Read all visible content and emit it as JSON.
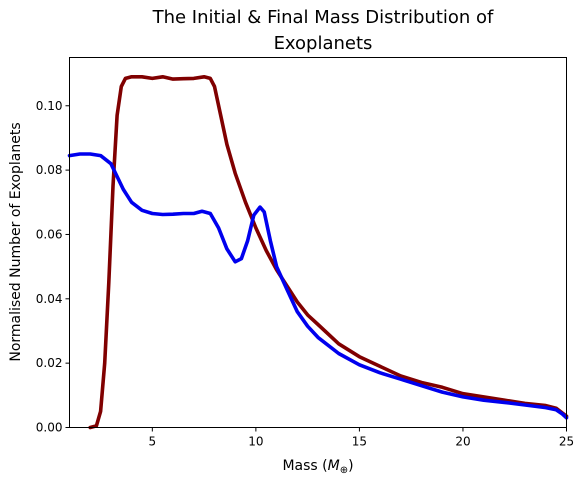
{
  "chart_data": {
    "type": "line",
    "title_line1": "The Initial & Final Mass Distribution of",
    "title_line2": "Exoplanets",
    "xlabel_main": "Mass (",
    "xlabel_symbol": "M",
    "xlabel_sub": "⊕",
    "xlabel_close": ")",
    "ylabel": "Normalised Number of Exoplanets",
    "xlim": [
      1,
      25
    ],
    "ylim": [
      0,
      0.115
    ],
    "xticks": [
      {
        "value": 5,
        "label": "5"
      },
      {
        "value": 10,
        "label": "10"
      },
      {
        "value": 15,
        "label": "15"
      },
      {
        "value": 20,
        "label": "20"
      },
      {
        "value": 25,
        "label": "25"
      }
    ],
    "yticks": [
      {
        "value": 0,
        "label": "0.00"
      },
      {
        "value": 0.02,
        "label": "0.02"
      },
      {
        "value": 0.04,
        "label": "0.04"
      },
      {
        "value": 0.06,
        "label": "0.06"
      },
      {
        "value": 0.08,
        "label": "0.08"
      },
      {
        "value": 0.1,
        "label": "0.10"
      }
    ],
    "grid": false,
    "series": [
      {
        "color": "#800000",
        "points": [
          [
            2.0,
            0.0
          ],
          [
            2.3,
            0.0005
          ],
          [
            2.5,
            0.005
          ],
          [
            2.7,
            0.02
          ],
          [
            2.9,
            0.045
          ],
          [
            3.1,
            0.075
          ],
          [
            3.3,
            0.097
          ],
          [
            3.5,
            0.106
          ],
          [
            3.7,
            0.1085
          ],
          [
            4.0,
            0.109
          ],
          [
            4.5,
            0.109
          ],
          [
            5.0,
            0.1085
          ],
          [
            5.5,
            0.109
          ],
          [
            6.0,
            0.1083
          ],
          [
            6.5,
            0.1084
          ],
          [
            7.0,
            0.1085
          ],
          [
            7.5,
            0.109
          ],
          [
            7.8,
            0.1085
          ],
          [
            8.0,
            0.106
          ],
          [
            8.3,
            0.097
          ],
          [
            8.6,
            0.088
          ],
          [
            9.0,
            0.079
          ],
          [
            9.5,
            0.07
          ],
          [
            10.0,
            0.062
          ],
          [
            10.5,
            0.055
          ],
          [
            11.0,
            0.049
          ],
          [
            11.5,
            0.044
          ],
          [
            12.0,
            0.039
          ],
          [
            12.5,
            0.035
          ],
          [
            13.0,
            0.032
          ],
          [
            14.0,
            0.026
          ],
          [
            15.0,
            0.022
          ],
          [
            16.0,
            0.019
          ],
          [
            17.0,
            0.016
          ],
          [
            18.0,
            0.014
          ],
          [
            19.0,
            0.0125
          ],
          [
            20.0,
            0.0105
          ],
          [
            21.0,
            0.0095
          ],
          [
            22.0,
            0.0085
          ],
          [
            23.0,
            0.0075
          ],
          [
            24.0,
            0.0068
          ],
          [
            24.5,
            0.006
          ],
          [
            24.8,
            0.0045
          ],
          [
            25.0,
            0.0035
          ]
        ]
      },
      {
        "color": "#0000ee",
        "points": [
          [
            1.0,
            0.0845
          ],
          [
            1.5,
            0.085
          ],
          [
            2.0,
            0.085
          ],
          [
            2.5,
            0.0845
          ],
          [
            3.0,
            0.082
          ],
          [
            3.3,
            0.078
          ],
          [
            3.6,
            0.074
          ],
          [
            4.0,
            0.07
          ],
          [
            4.5,
            0.0675
          ],
          [
            5.0,
            0.0665
          ],
          [
            5.5,
            0.0662
          ],
          [
            6.0,
            0.0663
          ],
          [
            6.5,
            0.0665
          ],
          [
            7.0,
            0.0665
          ],
          [
            7.4,
            0.0672
          ],
          [
            7.8,
            0.0665
          ],
          [
            8.2,
            0.062
          ],
          [
            8.6,
            0.0555
          ],
          [
            9.0,
            0.0515
          ],
          [
            9.3,
            0.0525
          ],
          [
            9.6,
            0.058
          ],
          [
            9.9,
            0.066
          ],
          [
            10.2,
            0.0685
          ],
          [
            10.4,
            0.067
          ],
          [
            10.7,
            0.058
          ],
          [
            11.0,
            0.05
          ],
          [
            11.5,
            0.043
          ],
          [
            12.0,
            0.036
          ],
          [
            12.5,
            0.0315
          ],
          [
            13.0,
            0.028
          ],
          [
            14.0,
            0.023
          ],
          [
            15.0,
            0.0195
          ],
          [
            16.0,
            0.017
          ],
          [
            17.0,
            0.015
          ],
          [
            18.0,
            0.013
          ],
          [
            19.0,
            0.011
          ],
          [
            20.0,
            0.0095
          ],
          [
            21.0,
            0.0085
          ],
          [
            22.0,
            0.0078
          ],
          [
            23.0,
            0.007
          ],
          [
            24.0,
            0.0062
          ],
          [
            24.5,
            0.0055
          ],
          [
            24.8,
            0.0042
          ],
          [
            25.0,
            0.003
          ]
        ]
      }
    ]
  }
}
